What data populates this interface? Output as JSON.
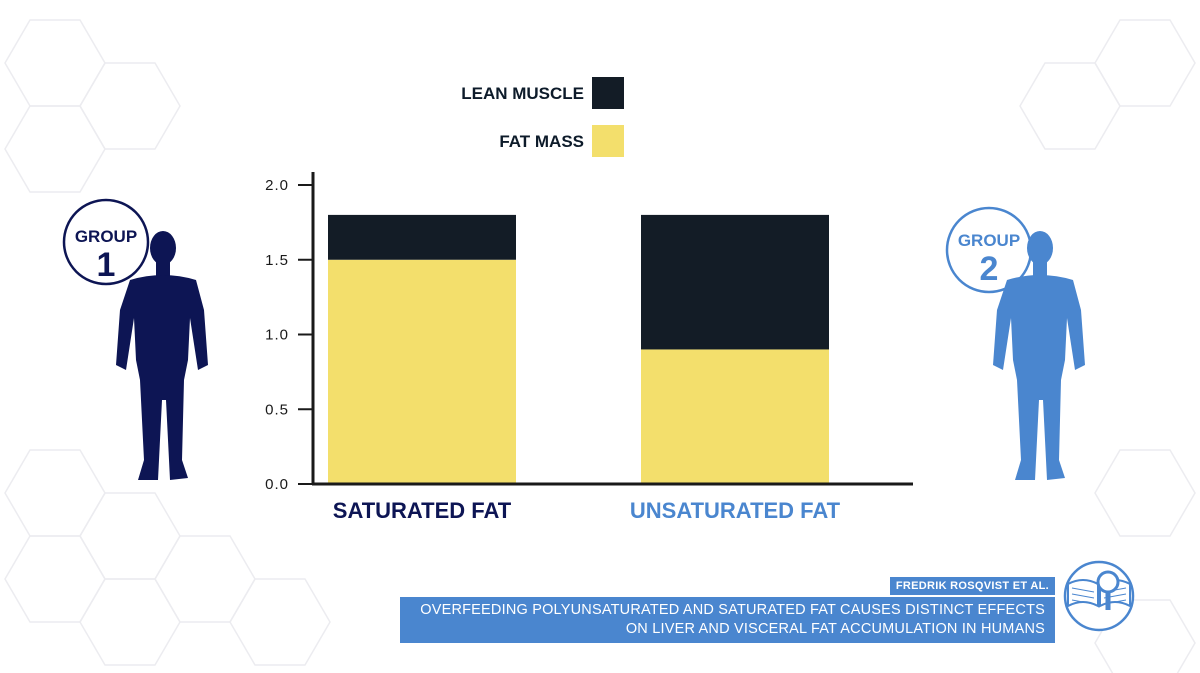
{
  "chart_data": {
    "type": "bar",
    "stacked": true,
    "categories": [
      "SATURATED FAT",
      "UNSATURATED FAT"
    ],
    "series": [
      {
        "name": "FAT MASS",
        "values": [
          1.5,
          0.9
        ],
        "color": "#f3df6c"
      },
      {
        "name": "LEAN MUSCLE",
        "values": [
          0.3,
          0.9
        ],
        "color": "#131c26"
      }
    ],
    "category_colors": [
      "#0d1554",
      "#4a86cf"
    ],
    "title": "",
    "xlabel": "",
    "ylabel": "",
    "ylim": [
      0,
      2.0
    ],
    "yticks": [
      "0.0",
      "0.5",
      "1.0",
      "1.5",
      "2.0"
    ],
    "grid": false,
    "legend_position": "top-center",
    "legend_order": [
      "LEAN MUSCLE",
      "FAT MASS"
    ]
  },
  "groups": [
    {
      "label": "GROUP",
      "number": "1",
      "color": "#0d1554"
    },
    {
      "label": "GROUP",
      "number": "2",
      "color": "#4a86cf"
    }
  ],
  "citation": {
    "author": "FREDRIK ROSQVIST ET AL.",
    "title_line1": "OVERFEEDING POLYUNSATURATED AND SATURATED FAT CAUSES DISTINCT EFFECTS",
    "title_line2": "ON LIVER AND VISCERAL FAT ACCUMULATION IN HUMANS",
    "color": "#4a86cf",
    "icon": "book-magnifier-icon"
  },
  "icons": {
    "group_1": "person-silhouette-icon",
    "group_2": "person-silhouette-icon"
  }
}
